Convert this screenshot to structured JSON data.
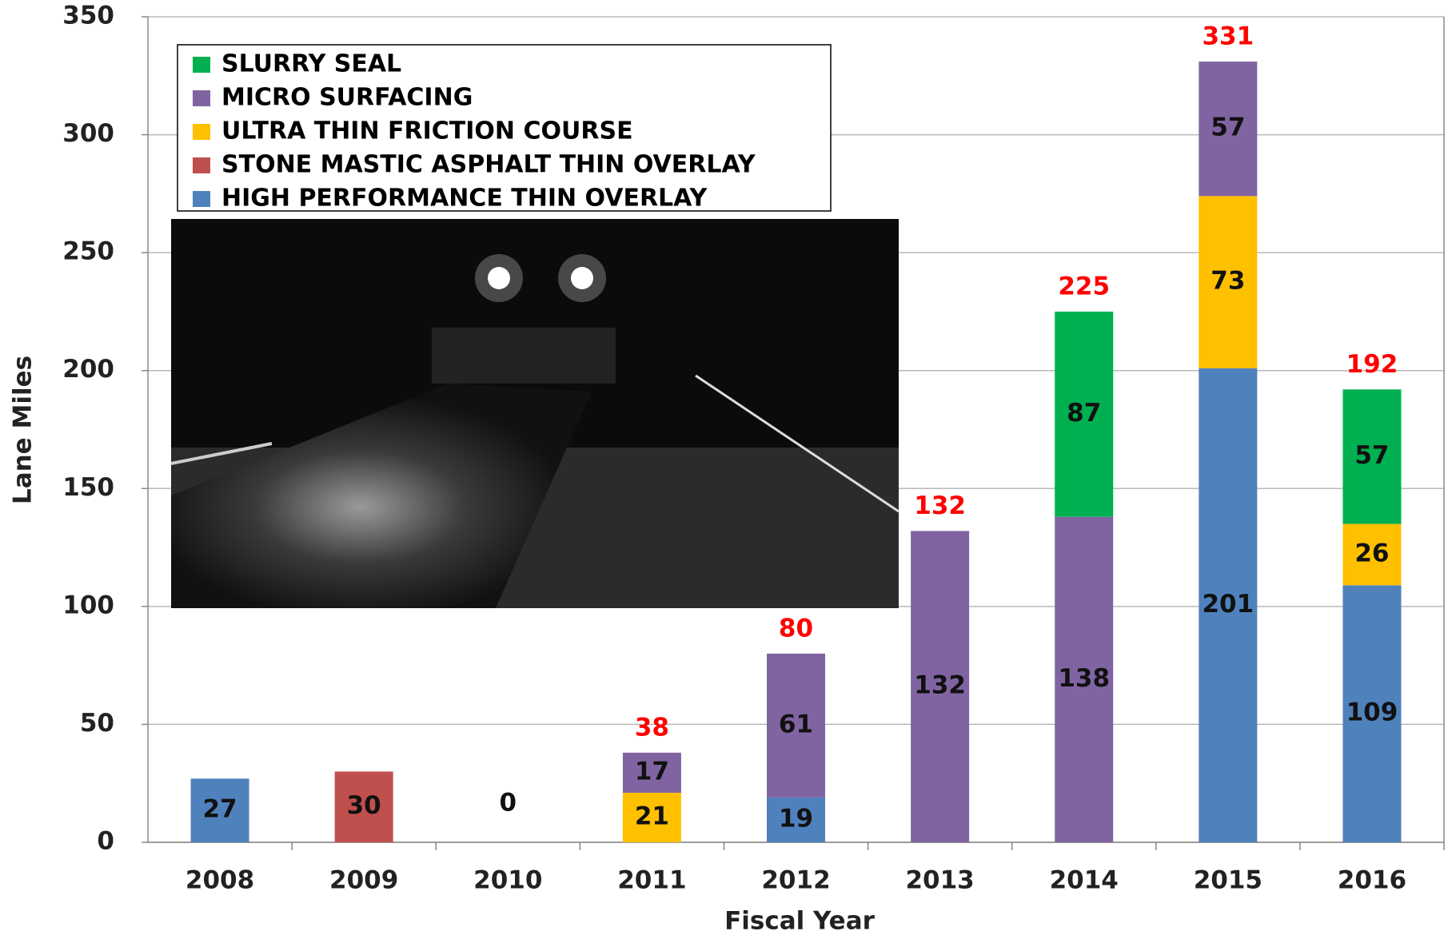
{
  "chart_data": {
    "type": "stacked_bar",
    "x_label": "Fiscal Year",
    "y_label": "Lane Miles",
    "categories": [
      "2008",
      "2009",
      "2010",
      "2011",
      "2012",
      "2013",
      "2014",
      "2015",
      "2016"
    ],
    "series": [
      {
        "name": "HIGH PERFORMANCE THIN OVERLAY",
        "color": "#4f81bd",
        "values": [
          27,
          null,
          0,
          null,
          19,
          null,
          null,
          201,
          109
        ]
      },
      {
        "name": "STONE MASTIC ASPHALT THIN OVERLAY",
        "color": "#c0504d",
        "values": [
          null,
          30,
          null,
          null,
          null,
          null,
          null,
          null,
          null
        ]
      },
      {
        "name": "ULTRA THIN FRICTION COURSE",
        "color": "#ffc000",
        "values": [
          null,
          null,
          null,
          21,
          null,
          null,
          null,
          73,
          26
        ]
      },
      {
        "name": "MICRO SURFACING",
        "color": "#8064a2",
        "values": [
          null,
          null,
          null,
          17,
          61,
          132,
          138,
          57,
          null
        ]
      },
      {
        "name": "SLURRY SEAL",
        "color": "#00b050",
        "values": [
          null,
          null,
          null,
          null,
          null,
          null,
          87,
          null,
          57
        ]
      }
    ],
    "totals": [
      null,
      null,
      null,
      38,
      80,
      132,
      225,
      331,
      192
    ],
    "ylim": [
      0,
      350
    ],
    "yticks": [
      0,
      50,
      100,
      150,
      200,
      250,
      300,
      350
    ],
    "grid": true
  }
}
